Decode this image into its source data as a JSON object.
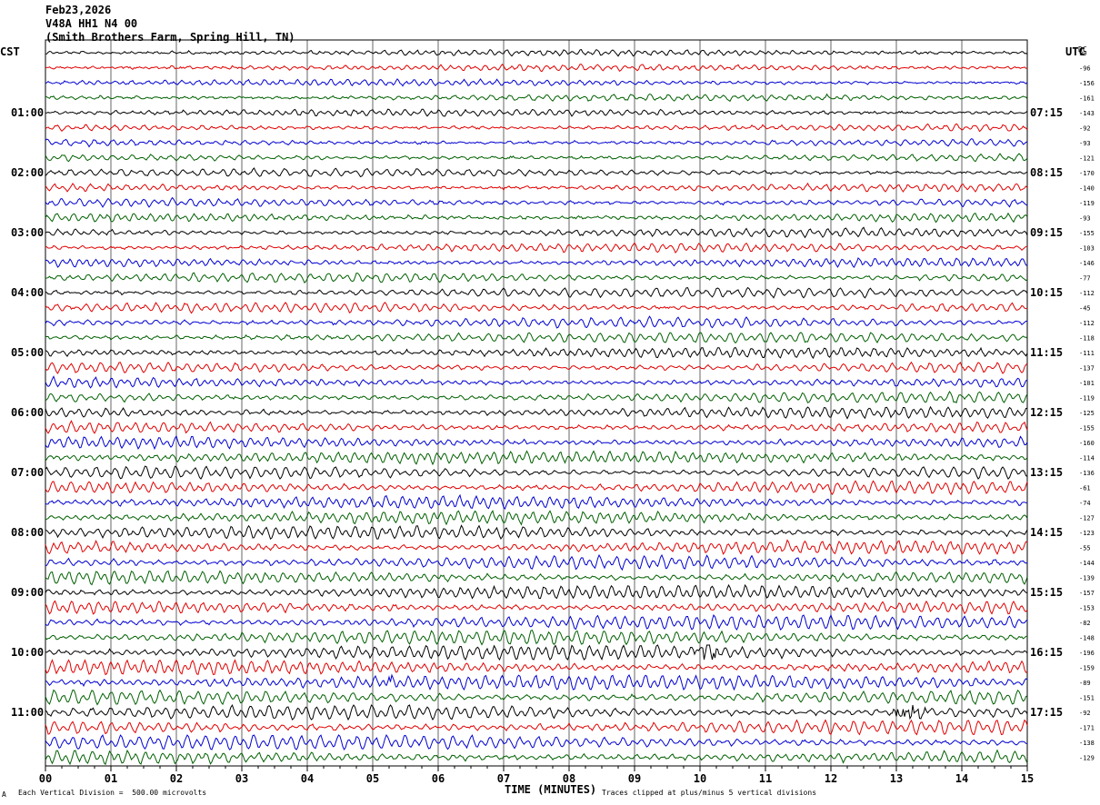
{
  "header": {
    "date": "Feb23,2026",
    "station": "V48A HH1 N4 00",
    "location": "(Smith Brothers Farm, Spring Hill, TN)"
  },
  "left_timezone": "CST",
  "right_timezone": "UTC",
  "dc_label": "DC",
  "footer": {
    "scale": "Each Vertical Division =  500.00 microvolts",
    "clip_note": "Traces clipped at plus/minus 5 vertical divisions",
    "corner_mark": "A"
  },
  "chart_data": {
    "type": "line",
    "subtype": "helicorder",
    "xlabel": "TIME (MINUTES)",
    "x_ticks": [
      "00",
      "01",
      "02",
      "03",
      "04",
      "05",
      "06",
      "07",
      "08",
      "09",
      "10",
      "11",
      "12",
      "13",
      "14",
      "15"
    ],
    "xlim": [
      0,
      15
    ],
    "trace_colors": [
      "#000000",
      "#e00000",
      "#0000d0",
      "#006000"
    ],
    "left_hour_labels": [
      "01:00",
      "02:00",
      "03:00",
      "04:00",
      "05:00",
      "06:00",
      "07:00",
      "08:00",
      "09:00",
      "10:00",
      "11:00"
    ],
    "right_hour_labels": [
      "07:15",
      "08:15",
      "09:15",
      "10:15",
      "11:15",
      "12:15",
      "13:15",
      "14:15",
      "15:15",
      "16:15",
      "17:15"
    ],
    "dc_offsets": [
      "99",
      "-96",
      "-156",
      "-161",
      "-143",
      "-92",
      "-93",
      "-121",
      "-170",
      "-140",
      "-119",
      "-93",
      "-155",
      "-103",
      "-146",
      "-77",
      "-112",
      "-45",
      "-112",
      "-118",
      "-111",
      "-137",
      "-101",
      "-119",
      "-125",
      "-155",
      "-160",
      "-114",
      "-136",
      "-61",
      "-74",
      "-127",
      "-123",
      "-55",
      "-144",
      "-139",
      "-157",
      "-153",
      "-82",
      "-148",
      "-196",
      "-159",
      "-89",
      "-151",
      "-92",
      "-171",
      "-138",
      "-129"
    ],
    "events": [
      {
        "trace": 40,
        "minute_start": 9.9,
        "minute_end": 10.3
      },
      {
        "trace": 44,
        "minute_start": 13.0,
        "minute_end": 13.5
      },
      {
        "trace": 42,
        "minute_start": 5.2,
        "minute_end": 5.3
      }
    ]
  }
}
